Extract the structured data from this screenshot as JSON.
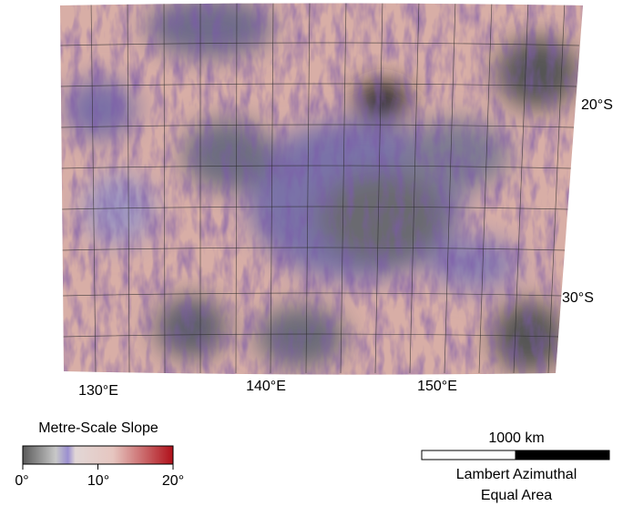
{
  "map": {
    "lat_labels": [
      "20°S",
      "30°S"
    ],
    "lon_labels": [
      "130°E",
      "140°E",
      "150°E"
    ],
    "legend": {
      "title": "Metre-Scale Slope",
      "ticks": [
        "0°",
        "10°",
        "20°"
      ]
    },
    "scale_bar": {
      "label": "1000 km"
    },
    "projection": [
      "Lambert Azimuthal",
      "Equal Area"
    ]
  }
}
